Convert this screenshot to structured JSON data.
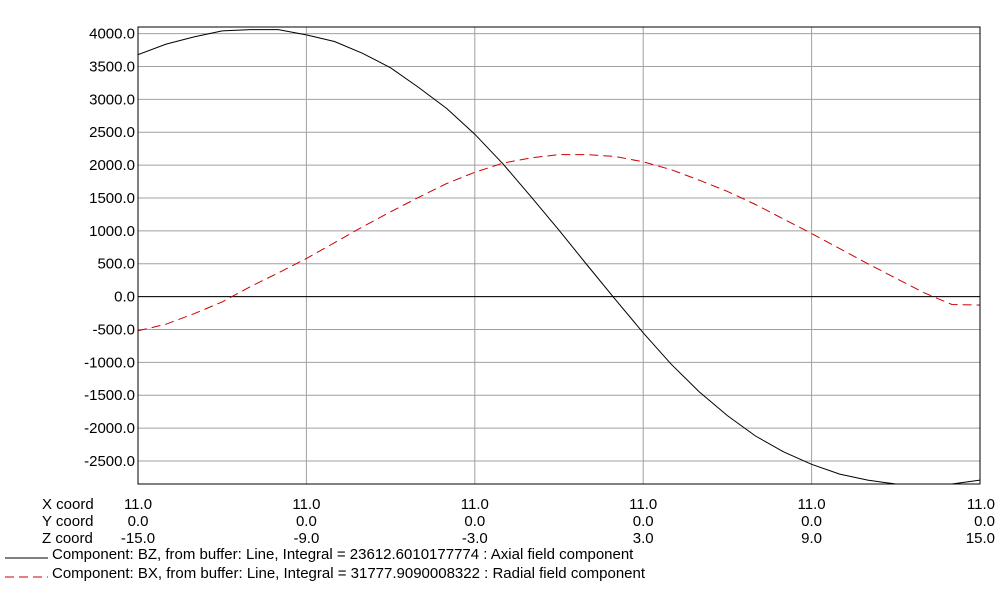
{
  "chart_data": {
    "type": "line",
    "title": "",
    "xlabel": "",
    "ylabel": "",
    "grid": true,
    "ylim": [
      -2850,
      4100
    ],
    "xlim": [
      -15.0,
      15.0
    ],
    "y_ticks": [
      4000.0,
      3500.0,
      3000.0,
      2500.0,
      2000.0,
      1500.0,
      1000.0,
      500.0,
      0.0,
      -500.0,
      -1000.0,
      -1500.0,
      -2000.0,
      -2500.0
    ],
    "y_tick_labels": [
      "4000.0",
      "3500.0",
      "3000.0",
      "2500.0",
      "2000.0",
      "1500.0",
      "1000.0",
      "500.0",
      "0.0",
      "-500.0",
      "-1000.0",
      "-1500.0",
      "-2000.0",
      "-2500.0"
    ],
    "coord_rows": [
      {
        "label": "X coord",
        "values": [
          "11.0",
          "11.0",
          "11.0",
          "11.0",
          "11.0",
          "11.0"
        ]
      },
      {
        "label": "Y coord",
        "values": [
          "0.0",
          "0.0",
          "0.0",
          "0.0",
          "0.0",
          "0.0"
        ]
      },
      {
        "label": "Z coord",
        "values": [
          "-15.0",
          "-9.0",
          "-3.0",
          "3.0",
          "9.0",
          "15.0"
        ]
      }
    ],
    "x_tick_positions": [
      -15.0,
      -9.0,
      -3.0,
      3.0,
      9.0,
      15.0
    ],
    "series": [
      {
        "name": "Component: BZ, from buffer: Line, Integral = 23612.6010177774 : Axial field component",
        "color": "#000000",
        "dash": "solid",
        "x": [
          -15,
          -14,
          -13,
          -12,
          -11,
          -10,
          -9,
          -8,
          -7,
          -6,
          -5,
          -4,
          -3,
          -2,
          -1,
          0,
          1,
          2,
          3,
          4,
          5,
          6,
          7,
          8,
          9,
          10,
          11,
          12,
          13,
          14,
          15
        ],
        "y": [
          3680,
          3840,
          3950,
          4040,
          4060,
          4060,
          3980,
          3880,
          3700,
          3480,
          3180,
          2860,
          2470,
          2020,
          1520,
          1010,
          480,
          -40,
          -550,
          -1030,
          -1450,
          -1810,
          -2120,
          -2360,
          -2550,
          -2700,
          -2790,
          -2850,
          -2870,
          -2850,
          -2790
        ]
      },
      {
        "name": "Component: BX, from buffer: Line, Integral = 31777.9090008322 : Radial field component",
        "color": "#cc0000",
        "dash": "dashed",
        "x": [
          -15,
          -14,
          -13,
          -12,
          -11,
          -10,
          -9,
          -8,
          -7,
          -6,
          -5,
          -4,
          -3,
          -2,
          -1,
          0,
          1,
          2,
          3,
          4,
          5,
          6,
          7,
          8,
          9,
          10,
          11,
          12,
          13,
          14,
          15
        ],
        "y": [
          -520,
          -420,
          -260,
          -80,
          150,
          360,
          580,
          820,
          1060,
          1290,
          1510,
          1720,
          1890,
          2030,
          2110,
          2160,
          2160,
          2130,
          2050,
          1930,
          1770,
          1600,
          1400,
          1180,
          960,
          730,
          500,
          280,
          60,
          -120,
          -130
        ]
      }
    ]
  }
}
